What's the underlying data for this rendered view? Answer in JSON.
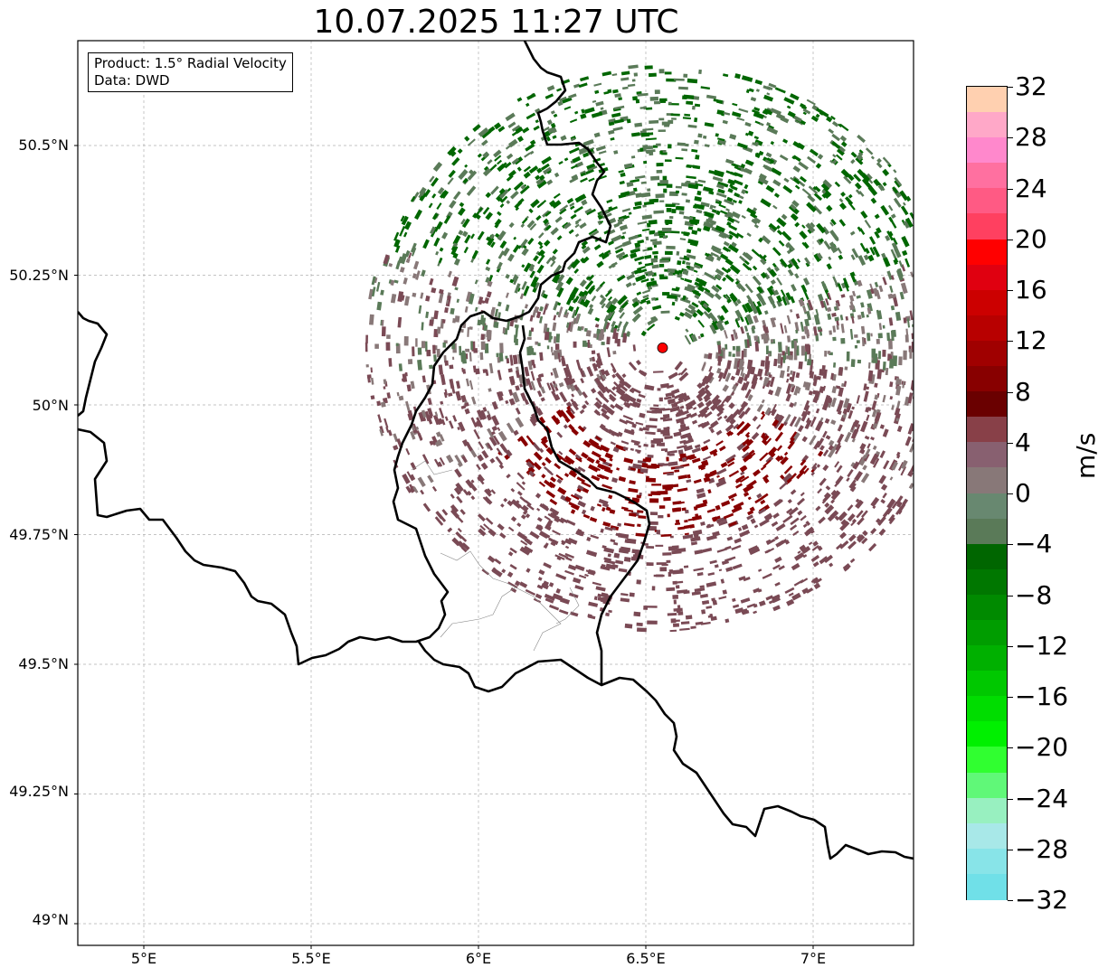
{
  "title": "10.07.2025 11:27 UTC",
  "info": {
    "product": "Product: 1.5° Radial Velocity",
    "source": "Data: DWD"
  },
  "axes": {
    "lat_ticks": [
      "50.5°N",
      "50.25°N",
      "50°N",
      "49.75°N",
      "49.5°N",
      "49.25°N",
      "49°N"
    ],
    "lon_ticks": [
      "5°E",
      "5.5°E",
      "6°E",
      "6.5°E",
      "7°E"
    ]
  },
  "radar_site": {
    "lon": 6.55,
    "lat": 50.11,
    "color": "#ff0000"
  },
  "colorbar": {
    "label": "m/s",
    "tick_labels": [
      "32",
      "28",
      "24",
      "20",
      "16",
      "12",
      "8",
      "4",
      "0",
      "−4",
      "−8",
      "−12",
      "−16",
      "−20",
      "−24",
      "−28",
      "−32"
    ],
    "colors_top_to_bottom": [
      "#ffd0b0",
      "#ffa8c8",
      "#ff88cc",
      "#ff70a0",
      "#ff5a84",
      "#ff4060",
      "#ff0000",
      "#e00010",
      "#cc0000",
      "#b80000",
      "#a00000",
      "#880000",
      "#6a0000",
      "#884048",
      "#886070",
      "#887878",
      "#688870",
      "#5a7a58",
      "#006600",
      "#007700",
      "#008a00",
      "#009d00",
      "#00b000",
      "#00c800",
      "#00dd00",
      "#00f000",
      "#30ff30",
      "#60f878",
      "#98f0c0",
      "#a8e8e8",
      "#88e4e8",
      "#70e0e8"
    ]
  },
  "velocity_colors": {
    "inbound_dark": "#006600",
    "inbound_mid": "#5a7a58",
    "near_zero": "#887878",
    "outbound_mid": "#7a4a55",
    "outbound_dark": "#880000"
  }
}
